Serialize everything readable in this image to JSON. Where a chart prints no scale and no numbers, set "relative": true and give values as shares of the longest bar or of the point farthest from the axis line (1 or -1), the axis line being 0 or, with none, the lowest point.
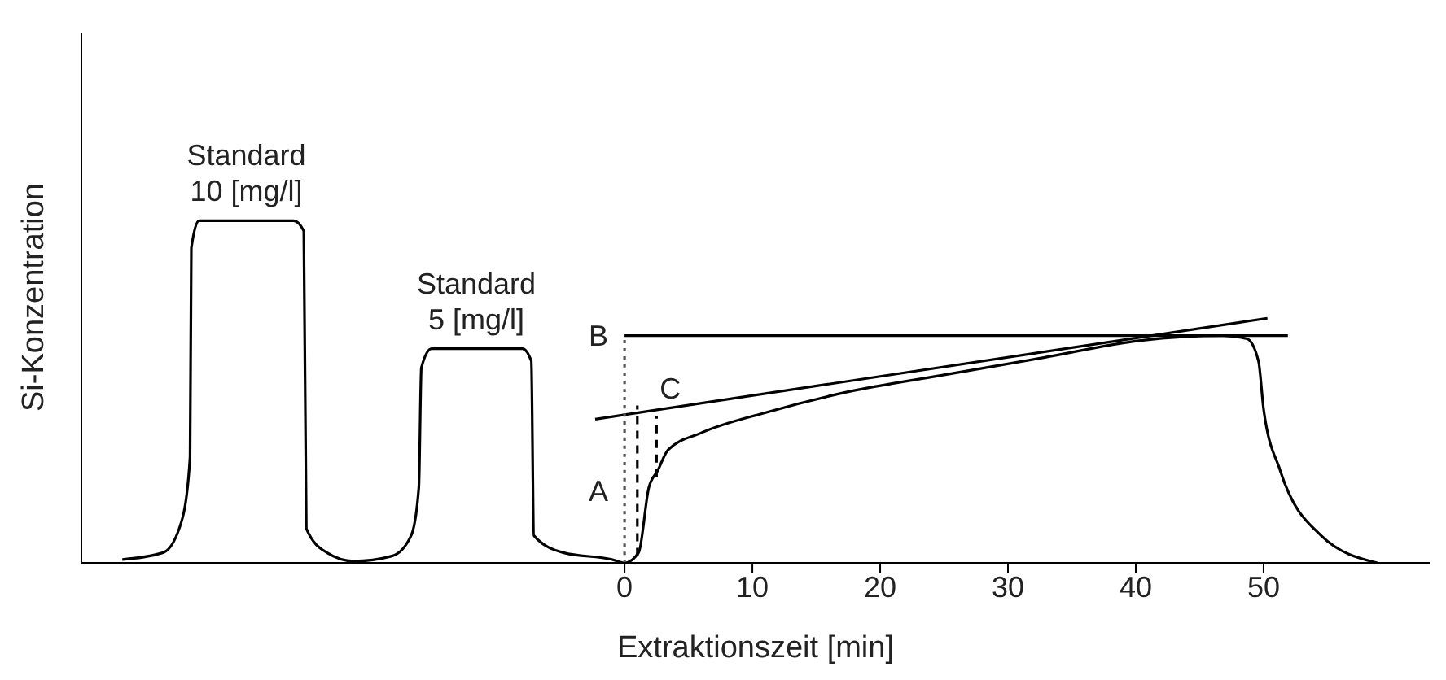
{
  "chart_data": {
    "type": "line",
    "relative": true,
    "xlabel": "Extraktionszeit [min]",
    "ylabel": "Si-Konzentration",
    "xlim": [
      -42.5,
      63
    ],
    "xticks": [
      0,
      10,
      20,
      30,
      40,
      50
    ],
    "marker": "none",
    "series": [
      {
        "color": "#000000",
        "line_style": "solid",
        "x": [
          -39.3,
          -36.1,
          -34.6,
          -34.0,
          -33.9,
          -33.3,
          -25.9,
          -25.1,
          -24.9,
          -23.3,
          -21.2,
          -18.2,
          -16.7,
          -16.1,
          -15.9,
          -15.1,
          -8.0,
          -7.3,
          -7.1,
          -4.8,
          -1.0,
          0,
          1.1,
          1.9,
          2.6,
          3.4,
          6.0,
          11.1,
          17.5,
          25.1,
          32.8,
          40.4,
          46.8,
          48.7,
          49.6,
          50.0,
          51.3,
          54.5,
          58.9
        ],
        "values": [
          0.01,
          0.03,
          0.13,
          0.31,
          0.92,
          1.0,
          1.0,
          0.97,
          0.1,
          0.03,
          0.005,
          0.02,
          0.08,
          0.22,
          0.57,
          0.626,
          0.626,
          0.59,
          0.08,
          0.03,
          0.01,
          0,
          0.03,
          0.22,
          0.27,
          0.33,
          0.38,
          0.44,
          0.5,
          0.55,
          0.6,
          0.65,
          0.664,
          0.655,
          0.59,
          0.45,
          0.27,
          0.08,
          0
        ]
      },
      {
        "color": "#000000",
        "line_style": "solid",
        "x": [
          -2.3,
          50.3
        ],
        "values": [
          0.42,
          0.715
        ]
      },
      {
        "color": "#000000",
        "line_style": "solid",
        "x": [
          0,
          51.9
        ],
        "values": [
          0.664,
          0.664
        ]
      },
      {
        "color": "#000000",
        "line_style": "dashed",
        "x": [
          1.0,
          1.0
        ],
        "values": [
          0.02,
          0.46
        ]
      },
      {
        "color": "#000000",
        "line_style": "dashed",
        "x": [
          2.5,
          2.5
        ],
        "values": [
          0.25,
          0.43
        ]
      },
      {
        "color": "#555555",
        "line_style": "dotted",
        "x": [
          0,
          0,
          0
        ],
        "values": [
          0,
          0.42,
          0.664
        ]
      }
    ],
    "annotations": [
      {
        "text": "Standard\n10 [mg/l]",
        "x": -29.6,
        "y": 1.0
      },
      {
        "text": "Standard\n5 [mg/l]",
        "x": -11.6,
        "y": 0.626
      },
      {
        "text": "A",
        "x": 0,
        "y": 0.21
      },
      {
        "text": "B",
        "x": 0,
        "y": 0.664
      },
      {
        "text": "C",
        "x": 2.5,
        "y": 0.47
      }
    ]
  }
}
